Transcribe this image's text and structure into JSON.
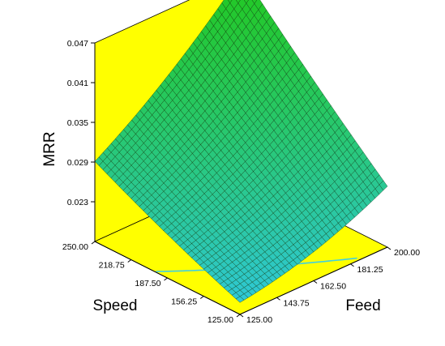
{
  "chart_data": {
    "type": "surface",
    "zlabel": "MRR",
    "xlabel": "Feed",
    "ylabel": "Speed",
    "feed_ticks": [
      "125.00",
      "143.75",
      "162.50",
      "181.25",
      "200.00"
    ],
    "speed_ticks": [
      "125.00",
      "156.25",
      "187.50",
      "218.75",
      "250.00"
    ],
    "mrr_ticks": [
      "0.023",
      "0.029",
      "0.035",
      "0.041",
      "0.047"
    ],
    "feed_range": [
      125,
      200
    ],
    "speed_range": [
      125,
      250
    ],
    "zlim": [
      0.017,
      0.047
    ],
    "surface_corners": [
      {
        "feed": 125,
        "speed": 125,
        "mrr": 0.0188
      },
      {
        "feed": 200,
        "speed": 125,
        "mrr": 0.0262
      },
      {
        "feed": 125,
        "speed": 250,
        "mrr": 0.0291
      },
      {
        "feed": 200,
        "speed": 250,
        "mrr": 0.0474
      }
    ],
    "grid": "surface mesh",
    "colors": {
      "panel": "#ffff00",
      "surface_high": "#22c81e",
      "surface_low": "#30c8e8",
      "mesh": "#0a2a0a",
      "contour": "#40d0e0",
      "axes": "#000000"
    }
  }
}
